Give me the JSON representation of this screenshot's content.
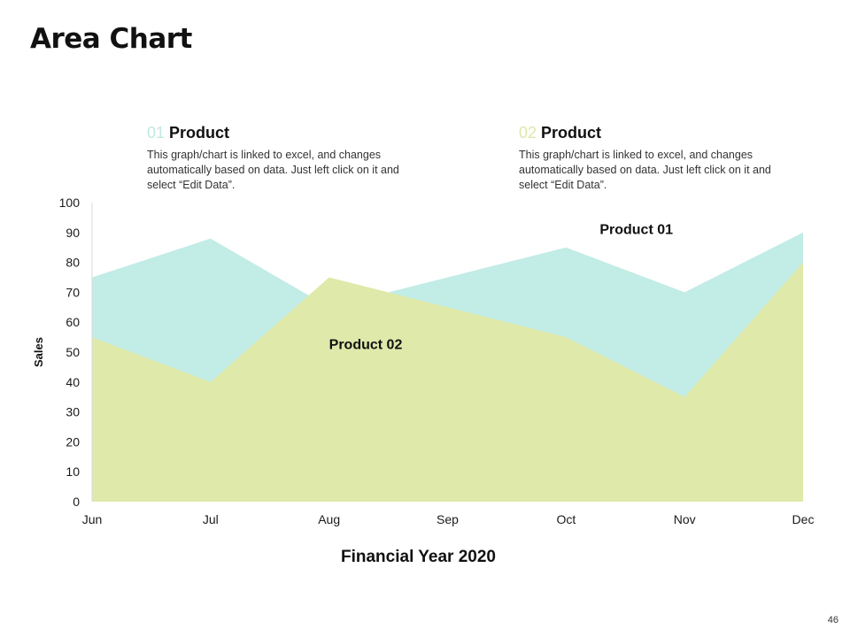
{
  "slide": {
    "title": "Area Chart",
    "page_number": "46"
  },
  "products": [
    {
      "number": "01",
      "name": "Product",
      "number_color": "#bfe8e3",
      "description": "This graph/chart is linked to excel, and changes automatically based on data. Just left click on it and select “Edit Data”."
    },
    {
      "number": "02",
      "name": "Product",
      "number_color": "#dfe8a8",
      "description": "This graph/chart is linked to excel, and changes automatically based on data. Just left click on it and select “Edit Data”."
    }
  ],
  "chart_data": {
    "type": "area",
    "title": "",
    "xlabel": "Financial Year 2020",
    "ylabel": "Sales",
    "categories": [
      "Jun",
      "Jul",
      "Aug",
      "Sep",
      "Oct",
      "Nov",
      "Dec"
    ],
    "ylim": [
      0,
      100
    ],
    "yticks": [
      0,
      10,
      20,
      30,
      40,
      50,
      60,
      70,
      80,
      90,
      100
    ],
    "grid": false,
    "legend": "none",
    "series": [
      {
        "name": "Product 01",
        "color": "#c2ece6",
        "values": [
          75,
          88,
          65,
          75,
          85,
          70,
          90
        ]
      },
      {
        "name": "Product 02",
        "color": "#dfe9aa",
        "values": [
          55,
          40,
          75,
          65,
          55,
          35,
          80
        ]
      }
    ],
    "annotations": [
      {
        "text": "Product 01",
        "series": "Product 01",
        "anchor_category": "Oct"
      },
      {
        "text": "Product 02",
        "series": "Product 02",
        "anchor_category": "Aug"
      }
    ]
  }
}
